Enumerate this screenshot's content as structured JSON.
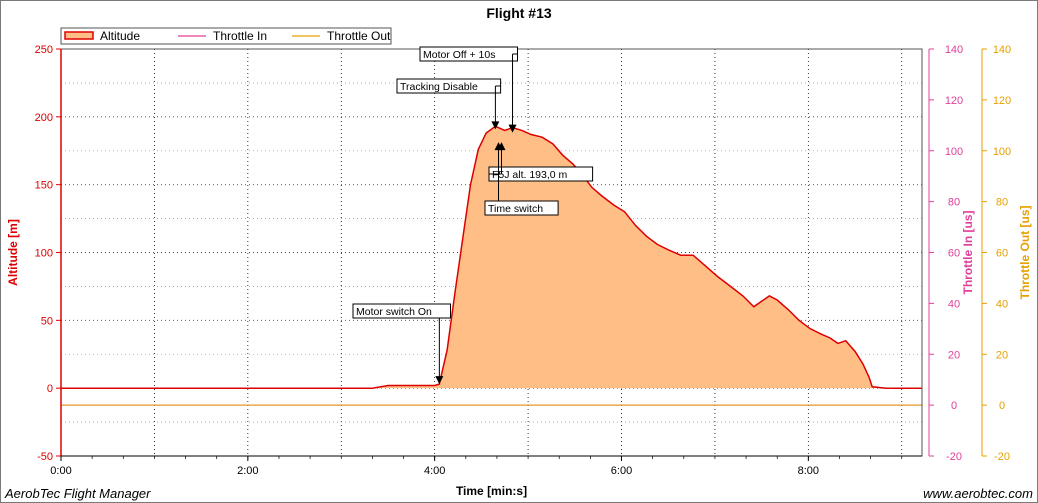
{
  "footer": {
    "left": "AerobTec Flight Manager",
    "right": "www.aerobtec.com"
  },
  "chart_data": {
    "type": "area",
    "title": "Flight #13",
    "xlabel": "Time [min:s]",
    "x_tick_labels": [
      "0:00",
      "2:00",
      "4:00",
      "6:00",
      "8:00"
    ],
    "x_ticks": [
      0,
      120,
      240,
      360,
      480
    ],
    "xlim": [
      0,
      553
    ],
    "y_left": {
      "label": "Altitude [m]",
      "lim": [
        -50,
        250
      ],
      "ticks": [
        -50,
        0,
        50,
        100,
        150,
        200,
        250
      ],
      "color": "#dd0000"
    },
    "y_right1": {
      "label": "Throttle In [us]",
      "lim": [
        -20,
        140
      ],
      "ticks": [
        -20,
        0,
        20,
        40,
        60,
        80,
        100,
        120,
        140
      ],
      "color": "#e0409a"
    },
    "y_right2": {
      "label": "Throttle Out [us]",
      "lim": [
        -20,
        140
      ],
      "ticks": [
        -20,
        0,
        20,
        40,
        60,
        80,
        100,
        120,
        140
      ],
      "color": "#e6a000"
    },
    "legend": {
      "placement": "top-left"
    },
    "grid": true,
    "series": [
      {
        "name": "Altitude",
        "color": "#dd0000",
        "fill": "#ffbe86",
        "axis": "left",
        "points": [
          [
            0,
            0
          ],
          [
            30,
            0
          ],
          [
            60,
            0
          ],
          [
            90,
            0
          ],
          [
            120,
            0
          ],
          [
            150,
            0
          ],
          [
            180,
            0
          ],
          [
            200,
            0
          ],
          [
            210,
            2
          ],
          [
            225,
            2
          ],
          [
            240,
            2
          ],
          [
            243,
            3
          ],
          [
            248,
            28
          ],
          [
            253,
            70
          ],
          [
            258,
            110
          ],
          [
            263,
            150
          ],
          [
            268,
            176
          ],
          [
            273,
            188
          ],
          [
            279,
            193
          ],
          [
            285,
            190
          ],
          [
            290,
            192
          ],
          [
            296,
            190
          ],
          [
            302,
            187
          ],
          [
            309,
            185
          ],
          [
            316,
            180
          ],
          [
            322,
            172
          ],
          [
            329,
            165
          ],
          [
            335,
            157
          ],
          [
            341,
            148
          ],
          [
            347,
            142
          ],
          [
            355,
            135
          ],
          [
            362,
            130
          ],
          [
            369,
            120
          ],
          [
            376,
            112
          ],
          [
            383,
            106
          ],
          [
            390,
            102
          ],
          [
            398,
            98
          ],
          [
            406,
            98
          ],
          [
            414,
            90
          ],
          [
            422,
            82
          ],
          [
            430,
            75
          ],
          [
            438,
            68
          ],
          [
            445,
            60
          ],
          [
            450,
            64
          ],
          [
            455,
            68
          ],
          [
            460,
            65
          ],
          [
            467,
            58
          ],
          [
            474,
            50
          ],
          [
            481,
            44
          ],
          [
            488,
            40
          ],
          [
            494,
            37
          ],
          [
            499,
            33
          ],
          [
            504,
            35
          ],
          [
            510,
            27
          ],
          [
            515,
            18
          ],
          [
            519,
            8
          ],
          [
            521,
            1
          ],
          [
            530,
            0
          ],
          [
            553,
            0
          ]
        ]
      },
      {
        "name": "Throttle In",
        "color": "#e0409a",
        "axis": "right1",
        "points": [
          [
            0,
            0
          ],
          [
            553,
            0
          ]
        ]
      },
      {
        "name": "Throttle Out",
        "color": "#e6a000",
        "axis": "right2",
        "points": [
          [
            0,
            0
          ],
          [
            553,
            0
          ]
        ]
      }
    ],
    "annotations": [
      {
        "label": "Motor switch On",
        "x": 243,
        "y": 3,
        "box": "above-left"
      },
      {
        "label": "Tracking Disable",
        "x": 279,
        "y": 193,
        "box": "above-left"
      },
      {
        "label": "Motor Off + 10s",
        "x": 290,
        "y": 192,
        "box": "above-left"
      },
      {
        "label": "F5J alt. 193,0 m",
        "x": 281,
        "y": 188,
        "box": "below-right"
      },
      {
        "label": "Time switch",
        "x": 281,
        "y": 188,
        "box": "below-right-far"
      }
    ]
  }
}
